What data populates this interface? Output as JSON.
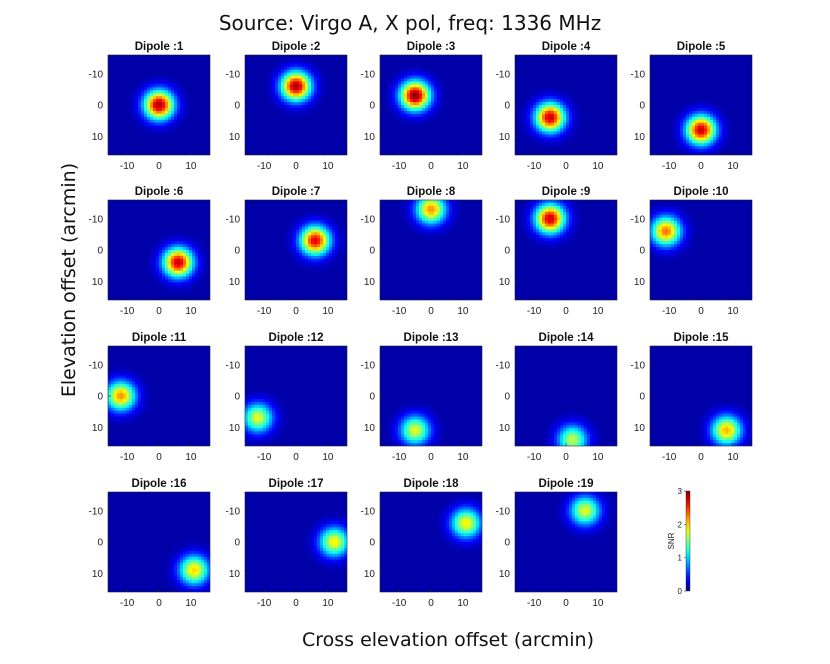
{
  "title": "Source: Virgo A, X pol, freq: 1336 MHz",
  "xlabel": "Cross elevation offset (arcmin)",
  "ylabel": "Elevation offset (arcmin)",
  "colorbar": {
    "label": "SNR",
    "min": 0,
    "max": 3,
    "ticks": [
      "0",
      "1",
      "2",
      "3"
    ],
    "colormap": "jet"
  },
  "chart_data": {
    "type": "heatmap",
    "layout": "4 rows x 5 columns of small-multiple heatmaps",
    "x_range": [
      -16,
      16
    ],
    "y_range": [
      -16,
      16
    ],
    "x_ticks": [
      -10,
      0,
      10
    ],
    "y_ticks": [
      -10,
      0,
      10
    ],
    "x_tick_labels": [
      "-10",
      "0",
      "10"
    ],
    "y_tick_labels": [
      "10",
      "0",
      "-10"
    ],
    "value_range": [
      0,
      3
    ],
    "panels": [
      {
        "title": "Dipole :1",
        "peak_x": 0,
        "peak_y": 0,
        "peak_snr": 2.9
      },
      {
        "title": "Dipole :2",
        "peak_x": 0,
        "peak_y": 6,
        "peak_snr": 2.9
      },
      {
        "title": "Dipole :3",
        "peak_x": -5,
        "peak_y": 3,
        "peak_snr": 3.0
      },
      {
        "title": "Dipole :4",
        "peak_x": -5,
        "peak_y": -4,
        "peak_snr": 2.8
      },
      {
        "title": "Dipole :5",
        "peak_x": 0,
        "peak_y": -8,
        "peak_snr": 2.8
      },
      {
        "title": "Dipole :6",
        "peak_x": 6,
        "peak_y": -4,
        "peak_snr": 2.8
      },
      {
        "title": "Dipole :7",
        "peak_x": 6,
        "peak_y": 3,
        "peak_snr": 2.7
      },
      {
        "title": "Dipole :8",
        "peak_x": 0,
        "peak_y": 13,
        "peak_snr": 2.2
      },
      {
        "title": "Dipole :9",
        "peak_x": -5,
        "peak_y": 10,
        "peak_snr": 2.8
      },
      {
        "title": "Dipole :10",
        "peak_x": -11,
        "peak_y": 6,
        "peak_snr": 2.3
      },
      {
        "title": "Dipole :11",
        "peak_x": -12,
        "peak_y": 0,
        "peak_snr": 2.2
      },
      {
        "title": "Dipole :12",
        "peak_x": -12,
        "peak_y": -7,
        "peak_snr": 1.8
      },
      {
        "title": "Dipole :13",
        "peak_x": -5,
        "peak_y": -11,
        "peak_snr": 1.8
      },
      {
        "title": "Dipole :14",
        "peak_x": 2,
        "peak_y": -14,
        "peak_snr": 1.7
      },
      {
        "title": "Dipole :15",
        "peak_x": 8,
        "peak_y": -11,
        "peak_snr": 2.1
      },
      {
        "title": "Dipole :16",
        "peak_x": 11,
        "peak_y": -9,
        "peak_snr": 2.0
      },
      {
        "title": "Dipole :17",
        "peak_x": 12,
        "peak_y": 0,
        "peak_snr": 1.9
      },
      {
        "title": "Dipole :18",
        "peak_x": 11,
        "peak_y": 6,
        "peak_snr": 1.9
      },
      {
        "title": "Dipole :19",
        "peak_x": 6,
        "peak_y": 10,
        "peak_snr": 1.8
      }
    ]
  }
}
